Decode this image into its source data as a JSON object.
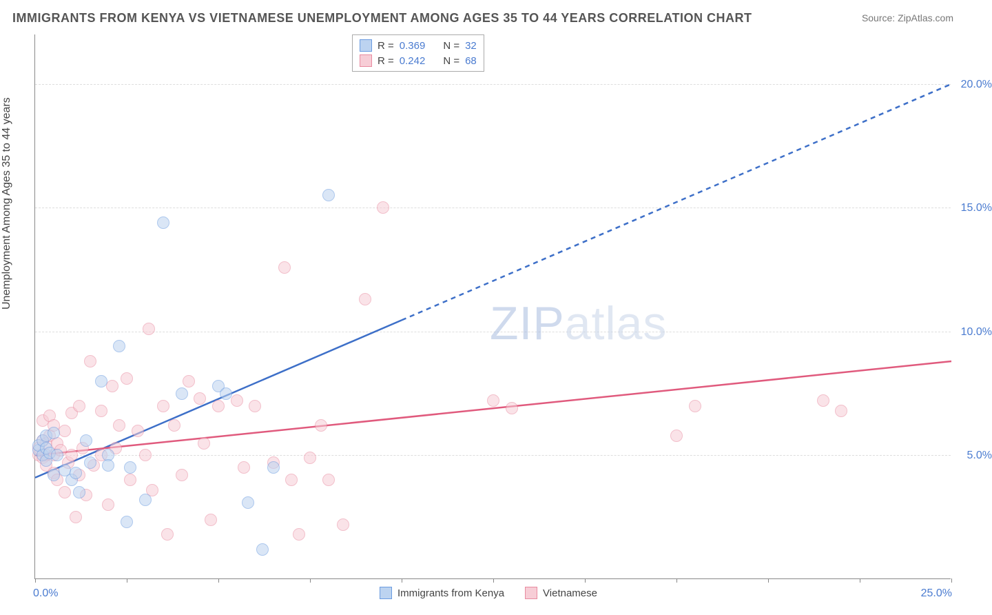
{
  "title": "IMMIGRANTS FROM KENYA VS VIETNAMESE UNEMPLOYMENT AMONG AGES 35 TO 44 YEARS CORRELATION CHART",
  "source": "Source: ZipAtlas.com",
  "watermark": "ZIPatlas",
  "y_axis_label": "Unemployment Among Ages 35 to 44 years",
  "chart": {
    "type": "scatter",
    "xlim": [
      0,
      25
    ],
    "ylim": [
      0,
      22
    ],
    "x_tick_positions": [
      0,
      2.5,
      5,
      7.5,
      10,
      12.5,
      15,
      17.5,
      20,
      22.5,
      25
    ],
    "y_grid": [
      5,
      10,
      15,
      20
    ],
    "x_label_min": "0.0%",
    "x_label_max": "25.0%",
    "y_labels": {
      "5": "5.0%",
      "10": "10.0%",
      "15": "15.0%",
      "20": "20.0%"
    },
    "background_color": "#ffffff",
    "grid_color": "#dddddd",
    "axis_color": "#888888",
    "tick_label_color": "#4a7bd0",
    "point_radius": 9,
    "point_opacity": 0.55,
    "series": [
      {
        "name": "Immigrants from Kenya",
        "key": "kenya",
        "color_fill": "#bcd3f0",
        "color_stroke": "#6a9be0",
        "line_color": "#3d6fc8",
        "R": "0.369",
        "N": "32",
        "trend": {
          "x1": 0,
          "y1": 4.1,
          "x2": 25,
          "y2": 20.0,
          "solid_until_x": 10
        },
        "points": [
          [
            0.1,
            5.2
          ],
          [
            0.1,
            5.4
          ],
          [
            0.2,
            5.0
          ],
          [
            0.2,
            5.6
          ],
          [
            0.3,
            4.8
          ],
          [
            0.3,
            5.8
          ],
          [
            0.3,
            5.3
          ],
          [
            0.4,
            5.1
          ],
          [
            0.5,
            4.2
          ],
          [
            0.5,
            5.9
          ],
          [
            0.6,
            5.0
          ],
          [
            0.8,
            4.4
          ],
          [
            1.0,
            4.0
          ],
          [
            1.1,
            4.3
          ],
          [
            1.2,
            3.5
          ],
          [
            1.4,
            5.6
          ],
          [
            1.5,
            4.7
          ],
          [
            1.8,
            8.0
          ],
          [
            2.0,
            5.0
          ],
          [
            2.0,
            4.6
          ],
          [
            2.3,
            9.4
          ],
          [
            2.5,
            2.3
          ],
          [
            2.6,
            4.5
          ],
          [
            3.0,
            3.2
          ],
          [
            3.5,
            14.4
          ],
          [
            4.0,
            7.5
          ],
          [
            5.0,
            7.8
          ],
          [
            5.2,
            7.5
          ],
          [
            5.8,
            3.1
          ],
          [
            6.2,
            1.2
          ],
          [
            6.5,
            4.5
          ],
          [
            8.0,
            15.5
          ]
        ]
      },
      {
        "name": "Vietnamese",
        "key": "vietnamese",
        "color_fill": "#f7cdd6",
        "color_stroke": "#e88ba0",
        "line_color": "#e05a7d",
        "R": "0.242",
        "N": "68",
        "trend": {
          "x1": 0,
          "y1": 5.0,
          "x2": 25,
          "y2": 8.8,
          "solid_until_x": 25
        },
        "points": [
          [
            0.1,
            5.0
          ],
          [
            0.1,
            5.3
          ],
          [
            0.2,
            5.6
          ],
          [
            0.2,
            4.9
          ],
          [
            0.2,
            6.4
          ],
          [
            0.3,
            5.0
          ],
          [
            0.3,
            5.5
          ],
          [
            0.3,
            4.6
          ],
          [
            0.4,
            5.8
          ],
          [
            0.4,
            6.6
          ],
          [
            0.5,
            4.3
          ],
          [
            0.5,
            5.0
          ],
          [
            0.5,
            6.2
          ],
          [
            0.6,
            5.5
          ],
          [
            0.6,
            4.0
          ],
          [
            0.7,
            5.2
          ],
          [
            0.8,
            3.5
          ],
          [
            0.8,
            6.0
          ],
          [
            0.9,
            4.7
          ],
          [
            1.0,
            6.7
          ],
          [
            1.0,
            5.0
          ],
          [
            1.1,
            2.5
          ],
          [
            1.2,
            4.2
          ],
          [
            1.2,
            7.0
          ],
          [
            1.3,
            5.3
          ],
          [
            1.4,
            3.4
          ],
          [
            1.5,
            8.8
          ],
          [
            1.6,
            4.6
          ],
          [
            1.8,
            6.8
          ],
          [
            1.8,
            5.0
          ],
          [
            2.0,
            3.0
          ],
          [
            2.1,
            7.8
          ],
          [
            2.2,
            5.3
          ],
          [
            2.3,
            6.2
          ],
          [
            2.5,
            8.1
          ],
          [
            2.6,
            4.0
          ],
          [
            2.8,
            6.0
          ],
          [
            3.0,
            5.0
          ],
          [
            3.1,
            10.1
          ],
          [
            3.2,
            3.6
          ],
          [
            3.5,
            7.0
          ],
          [
            3.6,
            1.8
          ],
          [
            3.8,
            6.2
          ],
          [
            4.0,
            4.2
          ],
          [
            4.2,
            8.0
          ],
          [
            4.5,
            7.3
          ],
          [
            4.6,
            5.5
          ],
          [
            4.8,
            2.4
          ],
          [
            5.0,
            7.0
          ],
          [
            5.5,
            7.2
          ],
          [
            5.7,
            4.5
          ],
          [
            6.0,
            7.0
          ],
          [
            6.5,
            4.7
          ],
          [
            6.8,
            12.6
          ],
          [
            7.0,
            4.0
          ],
          [
            7.2,
            1.8
          ],
          [
            7.5,
            4.9
          ],
          [
            7.8,
            6.2
          ],
          [
            8.0,
            4.0
          ],
          [
            8.4,
            2.2
          ],
          [
            9.0,
            11.3
          ],
          [
            9.5,
            15.0
          ],
          [
            12.5,
            7.2
          ],
          [
            13.0,
            6.9
          ],
          [
            17.5,
            5.8
          ],
          [
            18.0,
            7.0
          ],
          [
            21.5,
            7.2
          ],
          [
            22.0,
            6.8
          ]
        ]
      }
    ]
  }
}
